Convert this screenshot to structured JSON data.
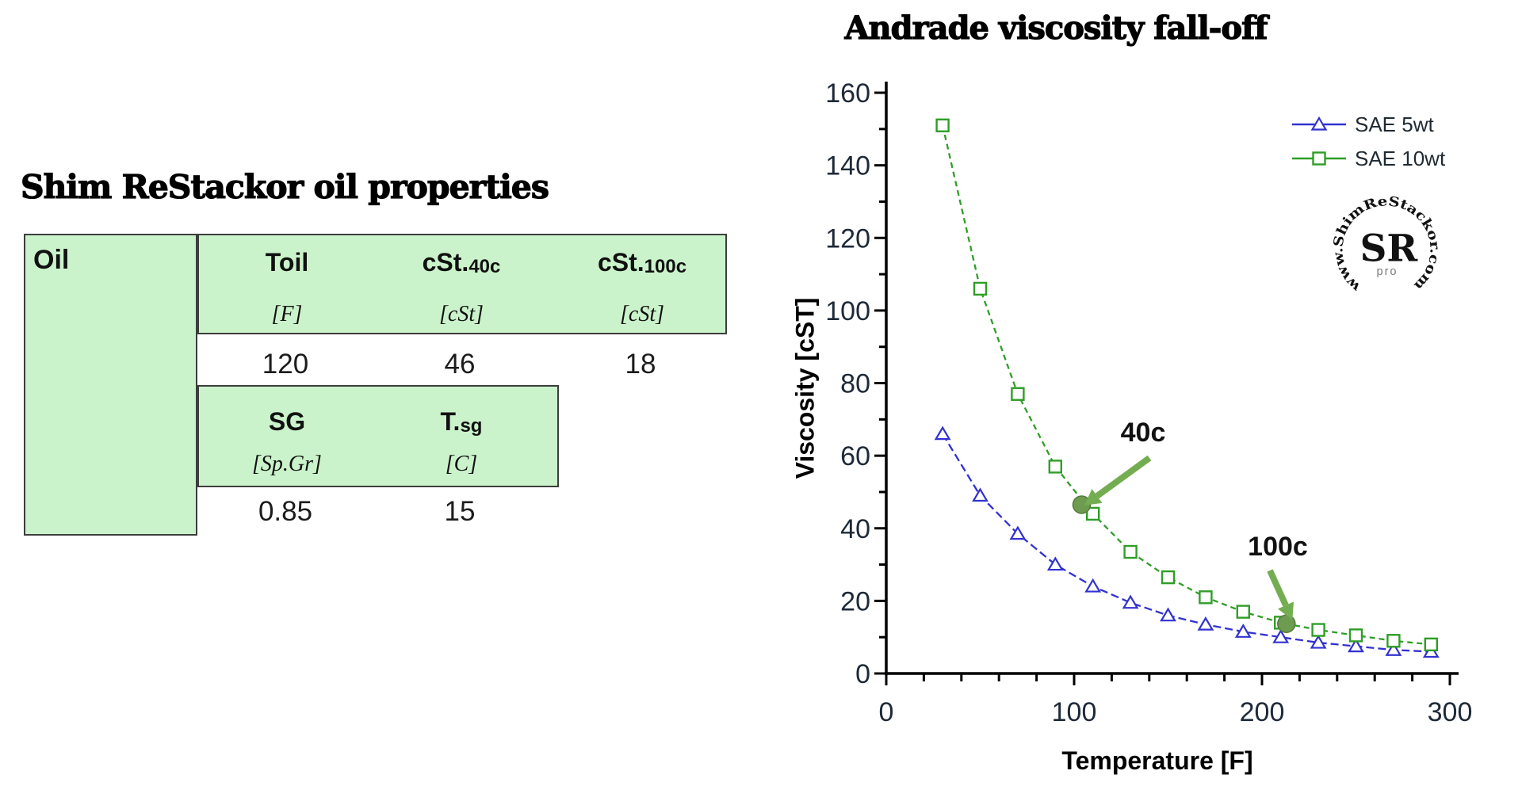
{
  "page": {
    "background": "#ffffff"
  },
  "oil_table": {
    "title": "Shim ReStackor oil properties",
    "corner_label": "Oil",
    "section1": {
      "headers": [
        {
          "main": "Toil",
          "sub": ""
        },
        {
          "main": "cSt.",
          "sub": "40c"
        },
        {
          "main": "cSt.",
          "sub": "100c"
        }
      ],
      "units": [
        "[F]",
        "[cSt]",
        "[cSt]"
      ],
      "values": [
        "120",
        "46",
        "18"
      ]
    },
    "section2": {
      "headers": [
        {
          "main": "SG",
          "sub": ""
        },
        {
          "main": "T.",
          "sub": "sg"
        }
      ],
      "units": [
        "[Sp.Gr]",
        "[C]"
      ],
      "values": [
        "0.85",
        "15"
      ]
    },
    "colors": {
      "cell_green": "#cbf3cb",
      "border": "#3d3d3d"
    }
  },
  "chart_data": {
    "type": "line",
    "title": "Andrade viscosity fall-off",
    "xlabel": "Temperature [F]",
    "ylabel": "Viscosity [cST]",
    "xlim": [
      0,
      300
    ],
    "ylim": [
      0,
      160
    ],
    "x_ticks": [
      0,
      100,
      200,
      300
    ],
    "x_minor_step": 20,
    "y_ticks": [
      0,
      20,
      40,
      60,
      80,
      100,
      120,
      140,
      160
    ],
    "y_minor_step": 10,
    "grid": false,
    "legend_position": "top-right",
    "x": [
      30,
      50,
      70,
      90,
      110,
      130,
      150,
      170,
      190,
      210,
      230,
      250,
      270,
      290
    ],
    "series": [
      {
        "name": "SAE 5wt",
        "color": "#3232d0",
        "marker": "triangle",
        "dash": "10 5",
        "values": [
          66,
          49,
          38.5,
          30,
          24,
          19.5,
          16,
          13.5,
          11.5,
          10,
          8.5,
          7.5,
          6.5,
          6
        ]
      },
      {
        "name": "SAE 10wt",
        "color": "#2f9e27",
        "marker": "square",
        "dash": "7 5",
        "values": [
          151,
          106,
          77,
          57,
          44,
          33.5,
          26.5,
          21,
          17,
          14,
          12,
          10.5,
          9,
          8
        ]
      }
    ],
    "annotations": [
      {
        "label": "40c",
        "point_x": 104,
        "point_y": 46.5,
        "series": "SAE 10wt"
      },
      {
        "label": "100c",
        "point_x": 213,
        "point_y": 13.7,
        "series": "SAE 10wt"
      }
    ],
    "annotation_arrow_color": "#74ad51",
    "annotation_dot_color": "#6d9b50",
    "axis_color": "#000000",
    "tick_label_color": "#1e2a38"
  },
  "logo": {
    "ring_text": "www.ShimReStackor.com",
    "center_text": "SR",
    "sub_text": "pro"
  }
}
